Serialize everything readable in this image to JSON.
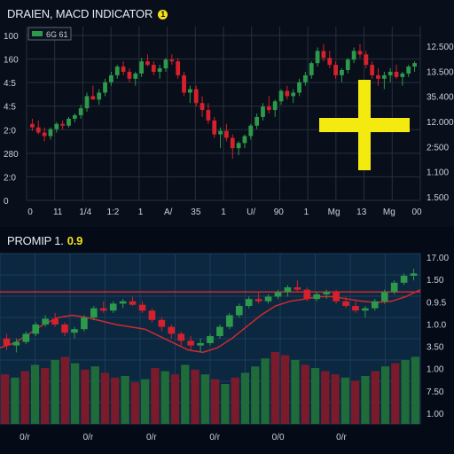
{
  "colors": {
    "up": "#2c9a4a",
    "down": "#d4212c",
    "grid": "#27313f",
    "signal": "#cf2a2f",
    "crosshair": "#f4ea10",
    "lower_bg": "#0c2740",
    "volume_up": "#1f6b3a",
    "volume_down": "#7a1b2c"
  },
  "upper": {
    "title": "DRAIEN, MACD INDICATOR",
    "title_badge": "1",
    "legend": "6G 61",
    "y_left_ticks": [
      "100",
      "160",
      "4:5",
      "4:5",
      "2:0",
      "280",
      "2:0",
      "0"
    ],
    "y_right_ticks": [
      "12.500",
      "13.500",
      "35.400",
      "12.000",
      "2:500",
      "1.100",
      "1.500"
    ],
    "x_ticks": [
      "0",
      "11",
      "1/4",
      "1:2",
      "1",
      "A/",
      "35",
      "1",
      "U/",
      "90",
      "1",
      "Mg",
      "13",
      "Mg",
      "00"
    ]
  },
  "lower": {
    "title": "PROMIP 1.",
    "title_value": "0.9",
    "y_right_ticks": [
      "17.00",
      "1.50",
      "0.9.5",
      "1.0.0",
      "3.50",
      "1.00",
      "7.50",
      "1.00"
    ],
    "x_ticks": [
      "0/r",
      "0/r",
      "0/r",
      "0/r",
      "0/0",
      "0/r"
    ]
  },
  "chart_data": [
    {
      "type": "candlestick",
      "title": "DRAIEN, MACD INDICATOR",
      "ylim": [
        0,
        100
      ],
      "candles": [
        [
          44,
          47,
          40,
          42
        ],
        [
          42,
          46,
          38,
          39
        ],
        [
          39,
          42,
          34,
          37
        ],
        [
          37,
          42,
          35,
          41
        ],
        [
          41,
          45,
          39,
          44
        ],
        [
          44,
          46,
          41,
          43
        ],
        [
          43,
          48,
          42,
          47
        ],
        [
          47,
          50,
          45,
          49
        ],
        [
          49,
          55,
          47,
          53
        ],
        [
          53,
          62,
          51,
          60
        ],
        [
          60,
          66,
          58,
          58
        ],
        [
          58,
          64,
          55,
          62
        ],
        [
          62,
          70,
          60,
          68
        ],
        [
          68,
          74,
          66,
          72
        ],
        [
          72,
          78,
          70,
          77
        ],
        [
          77,
          80,
          72,
          74
        ],
        [
          74,
          76,
          68,
          70
        ],
        [
          70,
          74,
          66,
          73
        ],
        [
          73,
          82,
          71,
          80
        ],
        [
          80,
          84,
          77,
          78
        ],
        [
          78,
          80,
          72,
          74
        ],
        [
          74,
          78,
          70,
          76
        ],
        [
          76,
          82,
          74,
          81
        ],
        [
          81,
          84,
          78,
          80
        ],
        [
          80,
          82,
          70,
          72
        ],
        [
          72,
          74,
          60,
          62
        ],
        [
          62,
          66,
          56,
          64
        ],
        [
          64,
          66,
          54,
          56
        ],
        [
          56,
          60,
          48,
          52
        ],
        [
          52,
          56,
          44,
          46
        ],
        [
          46,
          48,
          36,
          38
        ],
        [
          38,
          42,
          30,
          40
        ],
        [
          40,
          44,
          34,
          36
        ],
        [
          36,
          38,
          24,
          30
        ],
        [
          30,
          34,
          26,
          33
        ],
        [
          33,
          38,
          30,
          37
        ],
        [
          37,
          44,
          35,
          43
        ],
        [
          43,
          50,
          41,
          48
        ],
        [
          48,
          56,
          46,
          54
        ],
        [
          54,
          60,
          50,
          52
        ],
        [
          52,
          58,
          48,
          57
        ],
        [
          57,
          64,
          55,
          63
        ],
        [
          63,
          66,
          58,
          60
        ],
        [
          60,
          64,
          56,
          62
        ],
        [
          62,
          70,
          60,
          68
        ],
        [
          68,
          74,
          66,
          72
        ],
        [
          72,
          80,
          70,
          79
        ],
        [
          79,
          88,
          77,
          86
        ],
        [
          86,
          90,
          80,
          82
        ],
        [
          82,
          86,
          76,
          78
        ],
        [
          78,
          80,
          70,
          72
        ],
        [
          72,
          76,
          68,
          75
        ],
        [
          75,
          82,
          73,
          81
        ],
        [
          81,
          88,
          79,
          86
        ],
        [
          86,
          90,
          82,
          84
        ],
        [
          84,
          86,
          76,
          78
        ],
        [
          78,
          80,
          70,
          72
        ],
        [
          72,
          76,
          66,
          70
        ],
        [
          70,
          74,
          64,
          72
        ],
        [
          72,
          76,
          68,
          74
        ],
        [
          74,
          78,
          70,
          71
        ],
        [
          71,
          74,
          66,
          73
        ],
        [
          73,
          78,
          71,
          77
        ],
        [
          77,
          80,
          74,
          79
        ]
      ]
    },
    {
      "type": "candlestick",
      "title": "PROMIP 1.",
      "ylim": [
        0,
        100
      ],
      "signal_level": 70,
      "candles": [
        [
          30,
          34,
          20,
          24
        ],
        [
          24,
          30,
          18,
          27
        ],
        [
          27,
          36,
          25,
          34
        ],
        [
          34,
          44,
          32,
          42
        ],
        [
          42,
          50,
          40,
          47
        ],
        [
          47,
          52,
          40,
          42
        ],
        [
          42,
          44,
          32,
          35
        ],
        [
          35,
          40,
          30,
          38
        ],
        [
          38,
          50,
          36,
          48
        ],
        [
          48,
          58,
          46,
          56
        ],
        [
          56,
          62,
          52,
          54
        ],
        [
          54,
          62,
          52,
          60
        ],
        [
          60,
          64,
          56,
          62
        ],
        [
          62,
          66,
          58,
          59
        ],
        [
          59,
          62,
          52,
          54
        ],
        [
          54,
          56,
          44,
          46
        ],
        [
          46,
          48,
          36,
          40
        ],
        [
          40,
          42,
          30,
          34
        ],
        [
          34,
          36,
          24,
          28
        ],
        [
          28,
          32,
          20,
          24
        ],
        [
          24,
          30,
          18,
          26
        ],
        [
          26,
          34,
          24,
          32
        ],
        [
          32,
          42,
          30,
          40
        ],
        [
          40,
          52,
          38,
          50
        ],
        [
          50,
          60,
          48,
          58
        ],
        [
          58,
          66,
          56,
          64
        ],
        [
          64,
          70,
          60,
          62
        ],
        [
          62,
          68,
          60,
          66
        ],
        [
          66,
          72,
          64,
          70
        ],
        [
          70,
          76,
          66,
          74
        ],
        [
          74,
          80,
          70,
          72
        ],
        [
          72,
          74,
          62,
          64
        ],
        [
          64,
          70,
          62,
          68
        ],
        [
          68,
          72,
          64,
          70
        ],
        [
          70,
          72,
          60,
          62
        ],
        [
          62,
          66,
          56,
          58
        ],
        [
          58,
          62,
          52,
          54
        ],
        [
          54,
          58,
          48,
          56
        ],
        [
          56,
          64,
          54,
          62
        ],
        [
          62,
          72,
          60,
          70
        ],
        [
          70,
          80,
          68,
          78
        ],
        [
          78,
          86,
          76,
          84
        ],
        [
          84,
          90,
          80,
          86
        ]
      ],
      "ma": [
        22,
        26,
        34,
        42,
        48,
        50,
        48,
        45,
        42,
        40,
        38,
        32,
        26,
        20,
        18,
        22,
        30,
        40,
        50,
        58,
        62,
        64,
        66,
        66,
        64,
        62,
        61,
        62,
        66,
        72
      ],
      "volume": [
        {
          "v": 62,
          "up": false
        },
        {
          "v": 58,
          "up": true
        },
        {
          "v": 66,
          "up": false
        },
        {
          "v": 74,
          "up": true
        },
        {
          "v": 70,
          "up": false
        },
        {
          "v": 80,
          "up": true
        },
        {
          "v": 84,
          "up": false
        },
        {
          "v": 76,
          "up": true
        },
        {
          "v": 68,
          "up": false
        },
        {
          "v": 72,
          "up": true
        },
        {
          "v": 64,
          "up": false
        },
        {
          "v": 58,
          "up": false
        },
        {
          "v": 60,
          "up": true
        },
        {
          "v": 52,
          "up": false
        },
        {
          "v": 56,
          "up": true
        },
        {
          "v": 70,
          "up": false
        },
        {
          "v": 66,
          "up": true
        },
        {
          "v": 62,
          "up": false
        },
        {
          "v": 74,
          "up": true
        },
        {
          "v": 68,
          "up": false
        },
        {
          "v": 62,
          "up": true
        },
        {
          "v": 56,
          "up": false
        },
        {
          "v": 50,
          "up": true
        },
        {
          "v": 58,
          "up": false
        },
        {
          "v": 64,
          "up": true
        },
        {
          "v": 72,
          "up": true
        },
        {
          "v": 82,
          "up": true
        },
        {
          "v": 90,
          "up": false
        },
        {
          "v": 86,
          "up": false
        },
        {
          "v": 80,
          "up": true
        },
        {
          "v": 74,
          "up": false
        },
        {
          "v": 70,
          "up": true
        },
        {
          "v": 66,
          "up": false
        },
        {
          "v": 62,
          "up": false
        },
        {
          "v": 58,
          "up": true
        },
        {
          "v": 54,
          "up": false
        },
        {
          "v": 60,
          "up": true
        },
        {
          "v": 66,
          "up": false
        },
        {
          "v": 72,
          "up": true
        },
        {
          "v": 76,
          "up": false
        },
        {
          "v": 80,
          "up": true
        },
        {
          "v": 84,
          "up": true
        }
      ]
    }
  ]
}
